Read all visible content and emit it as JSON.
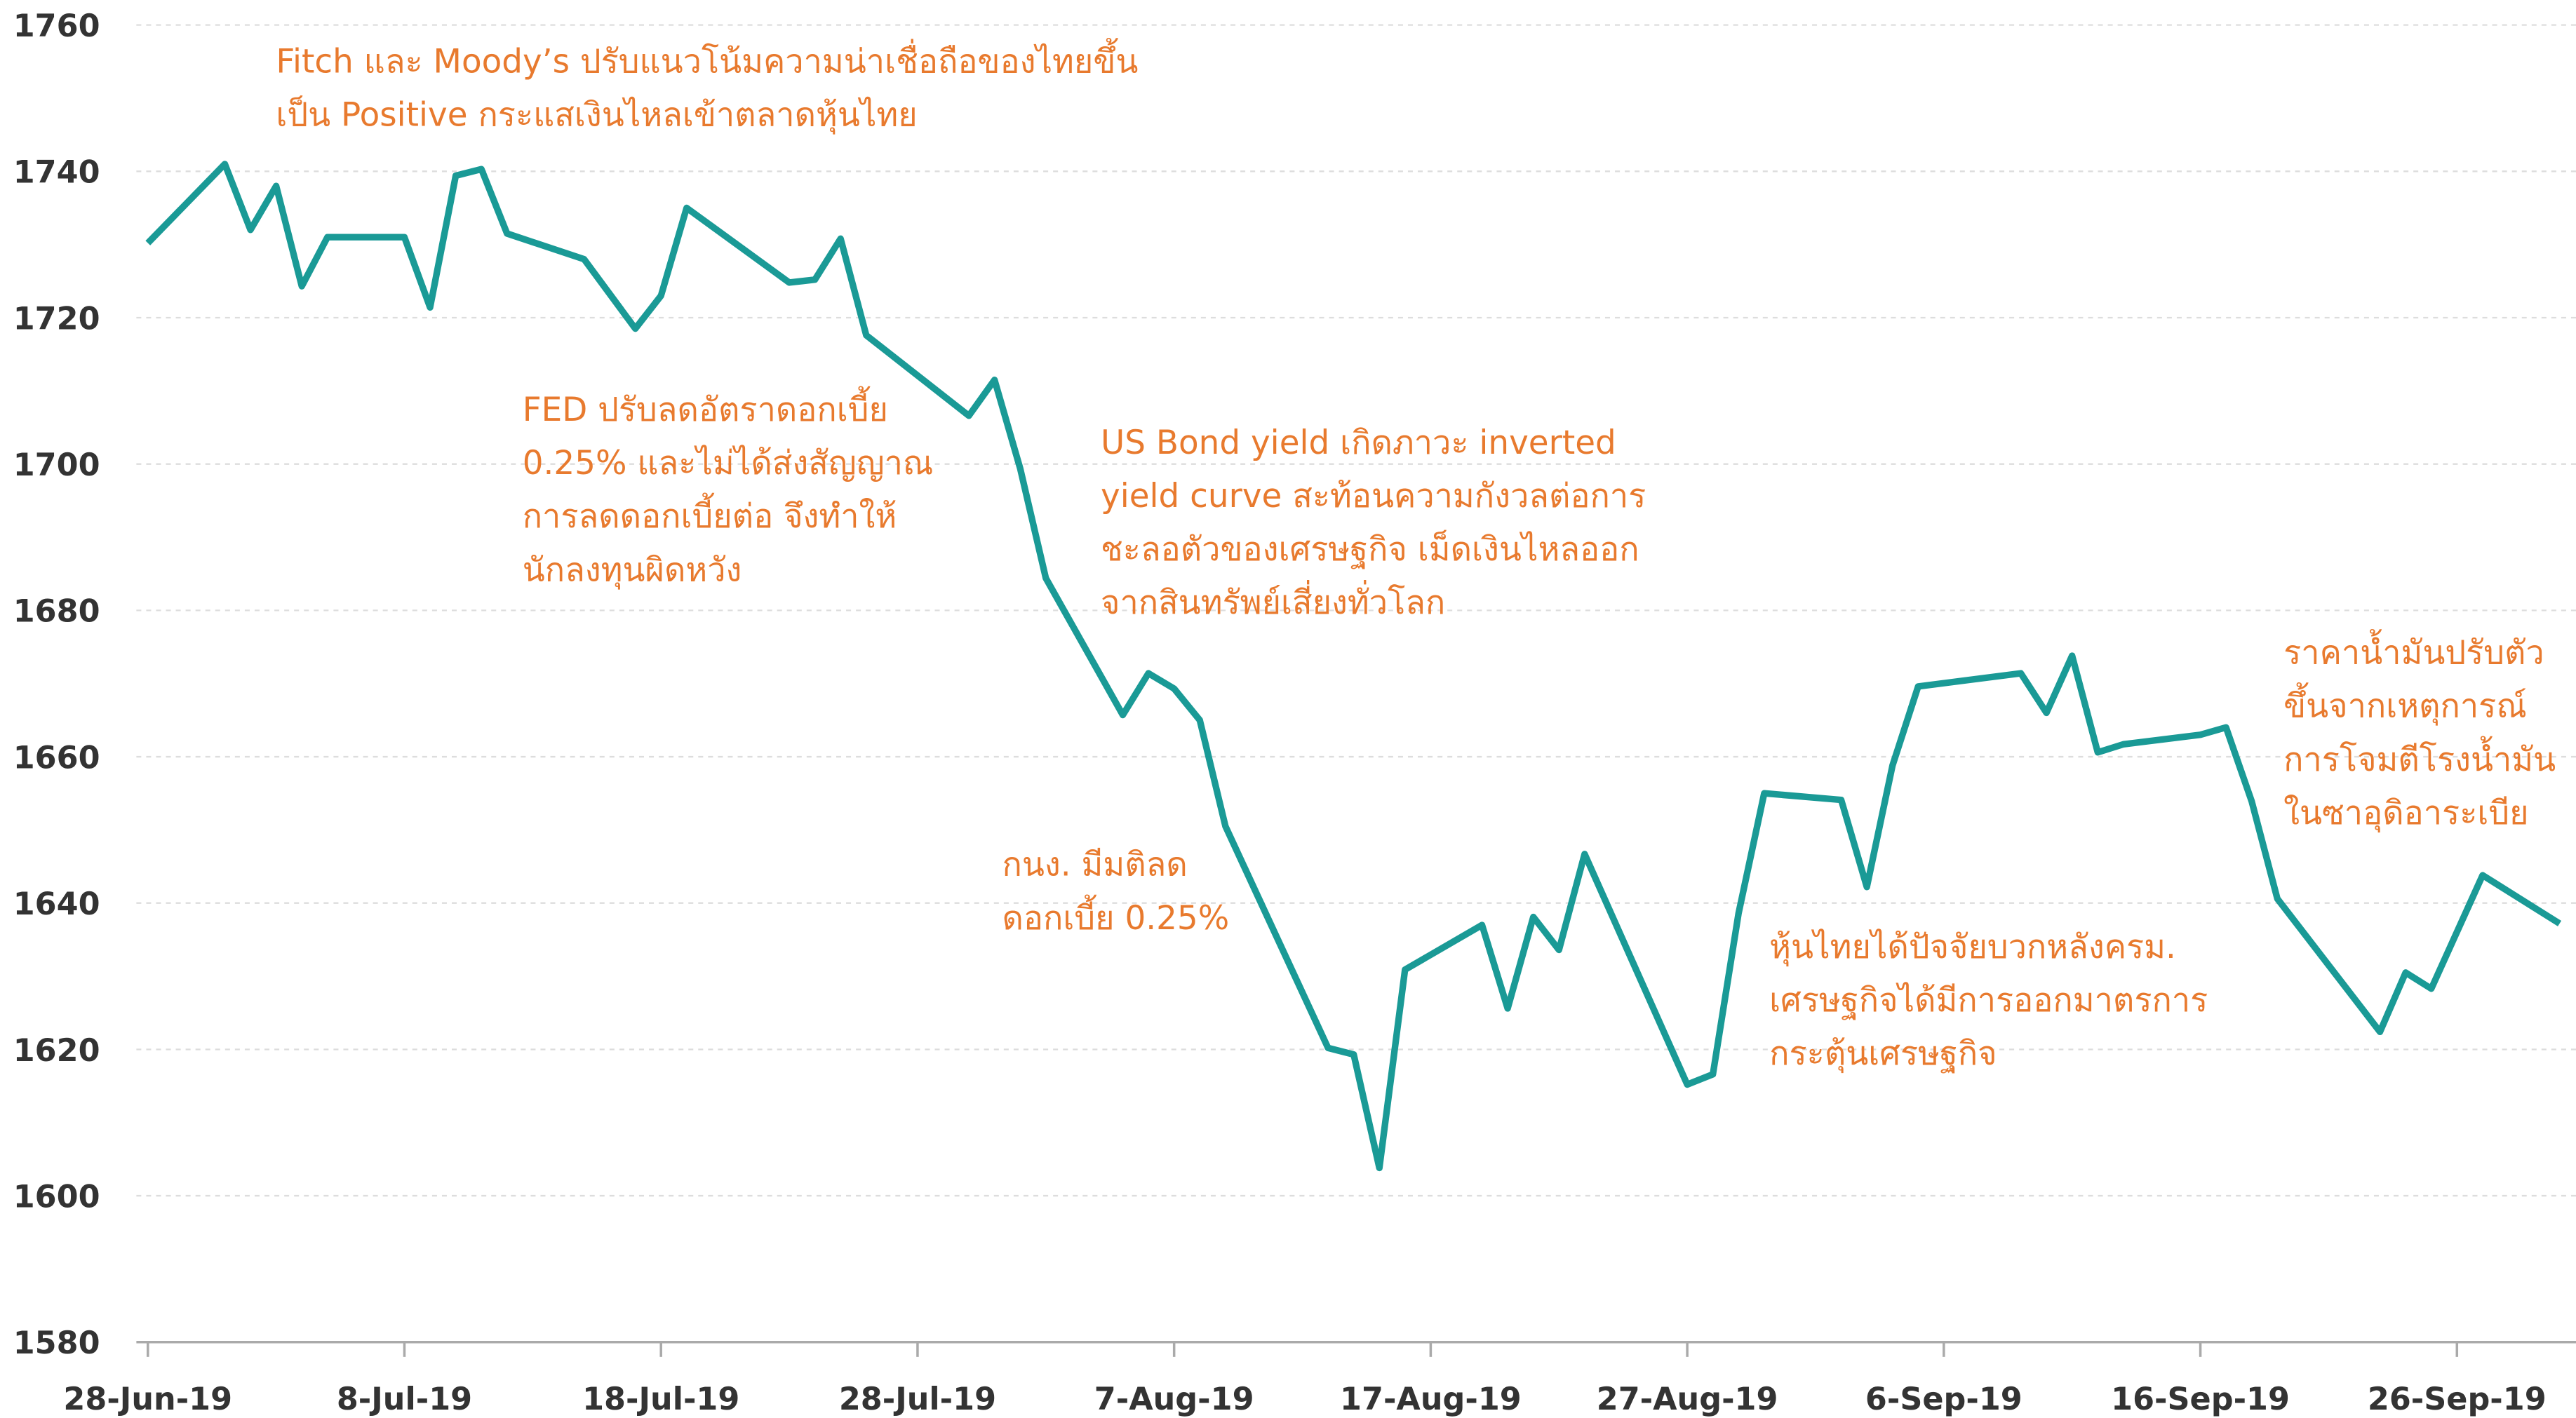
{
  "chart_data": {
    "type": "line",
    "x": [
      "28-Jun-19",
      "1-Jul-19",
      "2-Jul-19",
      "3-Jul-19",
      "4-Jul-19",
      "5-Jul-19",
      "8-Jul-19",
      "9-Jul-19",
      "10-Jul-19",
      "11-Jul-19",
      "12-Jul-19",
      "15-Jul-19",
      "17-Jul-19",
      "18-Jul-19",
      "19-Jul-19",
      "23-Jul-19",
      "24-Jul-19",
      "25-Jul-19",
      "26-Jul-19",
      "30-Jul-19",
      "31-Jul-19",
      "1-Aug-19",
      "2-Aug-19",
      "5-Aug-19",
      "6-Aug-19",
      "7-Aug-19",
      "8-Aug-19",
      "9-Aug-19",
      "13-Aug-19",
      "14-Aug-19",
      "15-Aug-19",
      "16-Aug-19",
      "19-Aug-19",
      "20-Aug-19",
      "21-Aug-19",
      "22-Aug-19",
      "23-Aug-19",
      "27-Aug-19",
      "28-Aug-19",
      "29-Aug-19",
      "30-Aug-19",
      "2-Sep-19",
      "3-Sep-19",
      "4-Sep-19",
      "5-Sep-19",
      "9-Sep-19",
      "10-Sep-19",
      "11-Sep-19",
      "12-Sep-19",
      "13-Sep-19",
      "16-Sep-19",
      "17-Sep-19",
      "18-Sep-19",
      "19-Sep-19",
      "23-Sep-19",
      "24-Sep-19",
      "25-Sep-19",
      "27-Sep-19",
      "30-Sep-19"
    ],
    "series": [
      {
        "color": "#1a9a96",
        "values": [
          1730.2,
          1741,
          1732,
          1738,
          1724.3,
          1731,
          1731,
          1721.4,
          1739.4,
          1740.3,
          1731.5,
          1728,
          1718.5,
          1723,
          1735,
          1724.8,
          1725.2,
          1730.8,
          1717.6,
          1706.6,
          1711.5,
          1699.4,
          1684.4,
          1665.7,
          1671.4,
          1669.3,
          1665,
          1650.5,
          1620.2,
          1619.3,
          1603.8,
          1630.9,
          1637,
          1625.6,
          1638.1,
          1633.6,
          1646.7,
          1615.2,
          1616.6,
          1638.6,
          1655,
          1654.1,
          1642.2,
          1658.8,
          1669.6,
          1671.4,
          1666,
          1673.8,
          1660.6,
          1661.7,
          1663,
          1664,
          1653.9,
          1640.6,
          1622.4,
          1630.5,
          1628.3,
          1643.8,
          1637.2
        ]
      }
    ],
    "xlim": [
      "28-Jun-19",
      "30-Sep-19"
    ],
    "xticks": [
      "28-Jun-19",
      "8-Jul-19",
      "18-Jul-19",
      "28-Jul-19",
      "7-Aug-19",
      "17-Aug-19",
      "27-Aug-19",
      "6-Sep-19",
      "16-Sep-19",
      "26-Sep-19"
    ],
    "ylim": [
      1580,
      1760
    ],
    "yticks": [
      1580,
      1600,
      1620,
      1640,
      1660,
      1680,
      1700,
      1720,
      1740,
      1760
    ],
    "grid": true,
    "annotations": [
      {
        "lines": [
          "Fitch และ Moody’s ปรับแนวโน้มความน่าเชื่อถือของไทยขึ้น",
          "เป็น Positive กระแสเงินไหลเข้าตลาดหุ้นไทย"
        ]
      },
      {
        "lines": [
          "FED ปรับลดอัตราดอกเบี้ย",
          "0.25% และไม่ได้ส่งสัญญาณ",
          "การลดดอกเบี้ยต่อ จึงทำให้",
          "นักลงทุนผิดหวัง"
        ]
      },
      {
        "lines": [
          "US Bond yield เกิดภาวะ inverted",
          "yield curve สะท้อนความกังวลต่อการ",
          "ชะลอตัวของเศรษฐกิจ เม็ดเงินไหลออก",
          "จากสินทรัพย์เสี่ยงทั่วโลก"
        ]
      },
      {
        "lines": [
          "กนง. มีมติลด",
          "ดอกเบี้ย 0.25%"
        ]
      },
      {
        "lines": [
          "หุ้นไทยได้ปัจจัยบวกหลังครม.",
          "เศรษฐกิจได้มีการออกมาตรการ",
          "กระตุ้นเศรษฐกิจ"
        ]
      },
      {
        "lines": [
          "ราคาน้ำมันปรับตัว",
          "ขึ้นจากเหตุการณ์",
          "การโจมตีโรงน้ำมัน",
          "ในซาอุดิอาระเบีย"
        ]
      }
    ]
  }
}
